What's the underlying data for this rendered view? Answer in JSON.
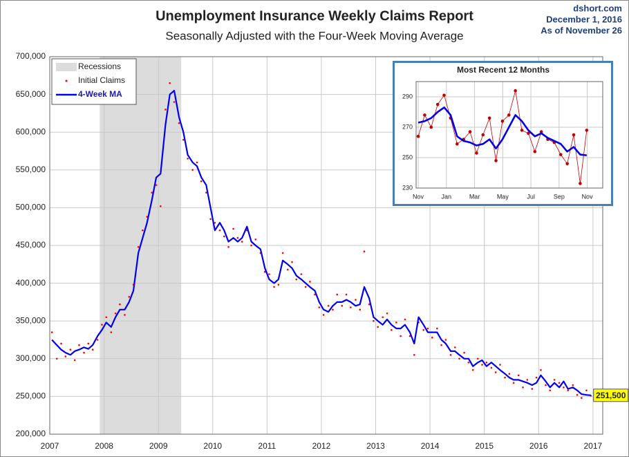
{
  "chart_data": [
    {
      "type": "line",
      "title": "Unemployment Insurance Weekly Claims Report",
      "subtitle": "Seasonally Adjusted with the Four-Week Moving Average",
      "source": "dshort.com",
      "date": "December 1, 2016",
      "as_of": "As of November 26",
      "x": [
        2007.04,
        2007.13,
        2007.21,
        2007.29,
        2007.38,
        2007.46,
        2007.54,
        2007.63,
        2007.71,
        2007.79,
        2007.88,
        2007.96,
        2008.04,
        2008.13,
        2008.21,
        2008.29,
        2008.38,
        2008.46,
        2008.54,
        2008.63,
        2008.71,
        2008.79,
        2008.88,
        2008.96,
        2009.04,
        2009.13,
        2009.21,
        2009.29,
        2009.38,
        2009.46,
        2009.54,
        2009.63,
        2009.71,
        2009.79,
        2009.88,
        2009.96,
        2010.04,
        2010.13,
        2010.21,
        2010.29,
        2010.38,
        2010.46,
        2010.54,
        2010.63,
        2010.71,
        2010.79,
        2010.88,
        2010.96,
        2011.04,
        2011.13,
        2011.21,
        2011.29,
        2011.38,
        2011.46,
        2011.54,
        2011.63,
        2011.71,
        2011.79,
        2011.88,
        2011.96,
        2012.04,
        2012.13,
        2012.21,
        2012.29,
        2012.38,
        2012.46,
        2012.54,
        2012.63,
        2012.71,
        2012.79,
        2012.88,
        2012.96,
        2013.04,
        2013.13,
        2013.21,
        2013.29,
        2013.38,
        2013.46,
        2013.54,
        2013.63,
        2013.71,
        2013.79,
        2013.88,
        2013.96,
        2014.04,
        2014.13,
        2014.21,
        2014.29,
        2014.38,
        2014.46,
        2014.54,
        2014.63,
        2014.71,
        2014.79,
        2014.88,
        2014.96,
        2015.04,
        2015.13,
        2015.21,
        2015.29,
        2015.38,
        2015.46,
        2015.54,
        2015.63,
        2015.71,
        2015.79,
        2015.88,
        2015.96,
        2016.04,
        2016.13,
        2016.21,
        2016.29,
        2016.38,
        2016.46,
        2016.54,
        2016.63,
        2016.71,
        2016.79,
        2016.88,
        2016.96
      ],
      "series": [
        {
          "name": "Initial Claims",
          "color": "#ff0000",
          "mode": "markers",
          "values": [
            335000,
            300000,
            320000,
            303000,
            312000,
            298000,
            318000,
            308000,
            320000,
            312000,
            325000,
            345000,
            355000,
            335000,
            360000,
            372000,
            358000,
            382000,
            398000,
            448000,
            470000,
            488000,
            520000,
            530000,
            502000,
            630000,
            665000,
            640000,
            612000,
            590000,
            565000,
            550000,
            560000,
            535000,
            520000,
            485000,
            480000,
            470000,
            462000,
            448000,
            472000,
            460000,
            455000,
            470000,
            450000,
            458000,
            440000,
            415000,
            412000,
            395000,
            398000,
            440000,
            418000,
            428000,
            405000,
            412000,
            395000,
            402000,
            385000,
            368000,
            358000,
            370000,
            365000,
            385000,
            370000,
            385000,
            368000,
            378000,
            365000,
            442000,
            372000,
            350000,
            342000,
            355000,
            360000,
            338000,
            348000,
            330000,
            352000,
            330000,
            305000,
            348000,
            338000,
            340000,
            328000,
            340000,
            318000,
            325000,
            305000,
            315000,
            300000,
            308000,
            295000,
            285000,
            300000,
            292000,
            295000,
            288000,
            282000,
            292000,
            275000,
            280000,
            268000,
            278000,
            262000,
            272000,
            260000,
            275000,
            285000,
            265000,
            258000,
            272000,
            268000,
            262000,
            258000,
            265000,
            252000,
            248000,
            258000,
            251000
          ]
        },
        {
          "name": "4-Week MA",
          "color": "#0000ee",
          "mode": "lines",
          "values": [
            325000,
            318000,
            312000,
            308000,
            305000,
            310000,
            312000,
            315000,
            313000,
            318000,
            330000,
            338000,
            348000,
            342000,
            355000,
            365000,
            365000,
            375000,
            390000,
            440000,
            460000,
            480000,
            510000,
            540000,
            545000,
            610000,
            650000,
            655000,
            620000,
            600000,
            570000,
            560000,
            555000,
            540000,
            530000,
            500000,
            470000,
            480000,
            470000,
            455000,
            460000,
            455000,
            460000,
            475000,
            455000,
            450000,
            445000,
            420000,
            405000,
            400000,
            405000,
            430000,
            425000,
            420000,
            410000,
            405000,
            400000,
            395000,
            390000,
            375000,
            365000,
            362000,
            370000,
            375000,
            375000,
            378000,
            375000,
            370000,
            372000,
            395000,
            380000,
            355000,
            350000,
            345000,
            352000,
            345000,
            340000,
            340000,
            345000,
            335000,
            320000,
            355000,
            345000,
            335000,
            335000,
            335000,
            325000,
            320000,
            310000,
            310000,
            305000,
            300000,
            300000,
            290000,
            295000,
            298000,
            290000,
            295000,
            290000,
            285000,
            280000,
            275000,
            272000,
            272000,
            270000,
            268000,
            265000,
            268000,
            278000,
            270000,
            262000,
            268000,
            262000,
            270000,
            260000,
            262000,
            258000,
            253000,
            252000,
            251500
          ]
        }
      ],
      "recessions": [
        {
          "name": "Recessions",
          "start": 2007.92,
          "end": 2009.42,
          "color": "#dcdcdc"
        }
      ],
      "annotations": [
        {
          "text": "251,500",
          "x": 2016.96,
          "y": 251500,
          "color": "#ffff00"
        }
      ],
      "xlim": [
        2007,
        2017.18
      ],
      "xticks": [
        2007,
        2008,
        2009,
        2010,
        2011,
        2012,
        2013,
        2014,
        2015,
        2016,
        2017
      ],
      "ylim": [
        200000,
        700000
      ],
      "yticks": [
        {
          "value": 200000,
          "label": "200,000"
        },
        {
          "value": 250000,
          "label": "250,000"
        },
        {
          "value": 300000,
          "label": "300,000"
        },
        {
          "value": 350000,
          "label": "350,000"
        },
        {
          "value": 400000,
          "label": "400,000"
        },
        {
          "value": 450000,
          "label": "450,000"
        },
        {
          "value": 500000,
          "label": "500,000"
        },
        {
          "value": 550000,
          "label": "550,000"
        },
        {
          "value": 600000,
          "label": "600,000"
        },
        {
          "value": 650000,
          "label": "650,000"
        },
        {
          "value": 700000,
          "label": "700,000"
        }
      ],
      "grid": true,
      "legend": "upper left"
    },
    {
      "type": "line",
      "title": "Most Recent 12 Months",
      "x": [
        0,
        0.46,
        0.92,
        1.38,
        1.84,
        2.3,
        2.76,
        3.22,
        3.68,
        4.14,
        4.6,
        5.06,
        5.52,
        5.98,
        6.44,
        6.9,
        7.36,
        7.82,
        8.28,
        8.74,
        9.2,
        9.66,
        10.12,
        10.58,
        11.04,
        11.5,
        11.96
      ],
      "series": [
        {
          "name": "Initial Claims",
          "color": "#c00000",
          "mode": "lines+markers",
          "values": [
            264,
            278,
            270,
            285,
            291,
            276,
            259,
            262,
            267,
            253,
            265,
            276,
            248,
            274,
            278,
            294,
            268,
            266,
            254,
            267,
            262,
            260,
            252,
            246,
            265,
            233,
            268
          ]
        },
        {
          "name": "4-Week MA",
          "color": "#0000ee",
          "mode": "lines",
          "values": [
            273,
            274,
            276,
            280,
            283,
            278,
            264,
            261,
            260,
            258,
            259,
            262,
            256,
            262,
            270,
            278,
            274,
            268,
            264,
            266,
            263,
            261,
            259,
            254,
            257,
            252,
            251.5
          ]
        }
      ],
      "xlim": [
        -0.15,
        13.1
      ],
      "xticks": [
        {
          "value": 0,
          "label": "Nov"
        },
        {
          "value": 2,
          "label": "Jan"
        },
        {
          "value": 4,
          "label": "Mar"
        },
        {
          "value": 6,
          "label": "May"
        },
        {
          "value": 8,
          "label": "Jul"
        },
        {
          "value": 10,
          "label": "Sep"
        },
        {
          "value": 12,
          "label": "Nov"
        }
      ],
      "ylim": [
        230,
        300
      ],
      "yticks": [
        230,
        250,
        270,
        290
      ],
      "grid": true
    }
  ]
}
